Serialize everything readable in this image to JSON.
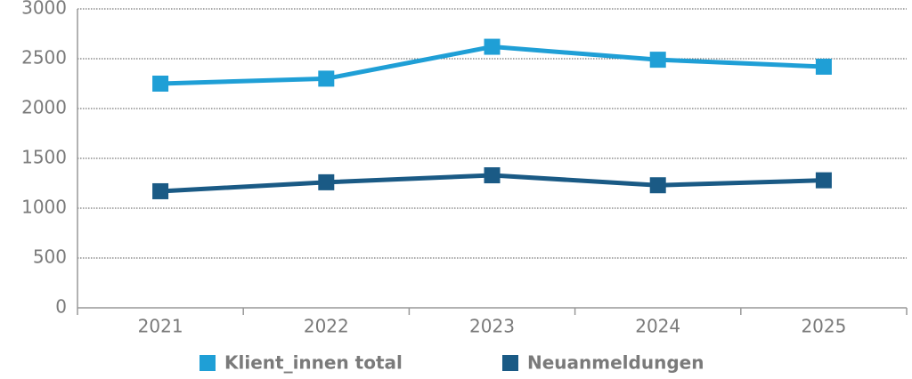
{
  "chart_data": {
    "type": "line",
    "categories": [
      "2021",
      "2022",
      "2023",
      "2024",
      "2025"
    ],
    "series": [
      {
        "name": "Klient_innen total",
        "color": "#1f9fd6",
        "values": [
          2250,
          2300,
          2620,
          2490,
          2420
        ]
      },
      {
        "name": "Neuanmeldungen",
        "color": "#1a5a85",
        "values": [
          1170,
          1260,
          1330,
          1230,
          1280
        ]
      }
    ],
    "ylim": [
      0,
      3000
    ],
    "yticks": [
      0,
      500,
      1000,
      1500,
      2000,
      2500,
      3000
    ],
    "grid": true
  }
}
